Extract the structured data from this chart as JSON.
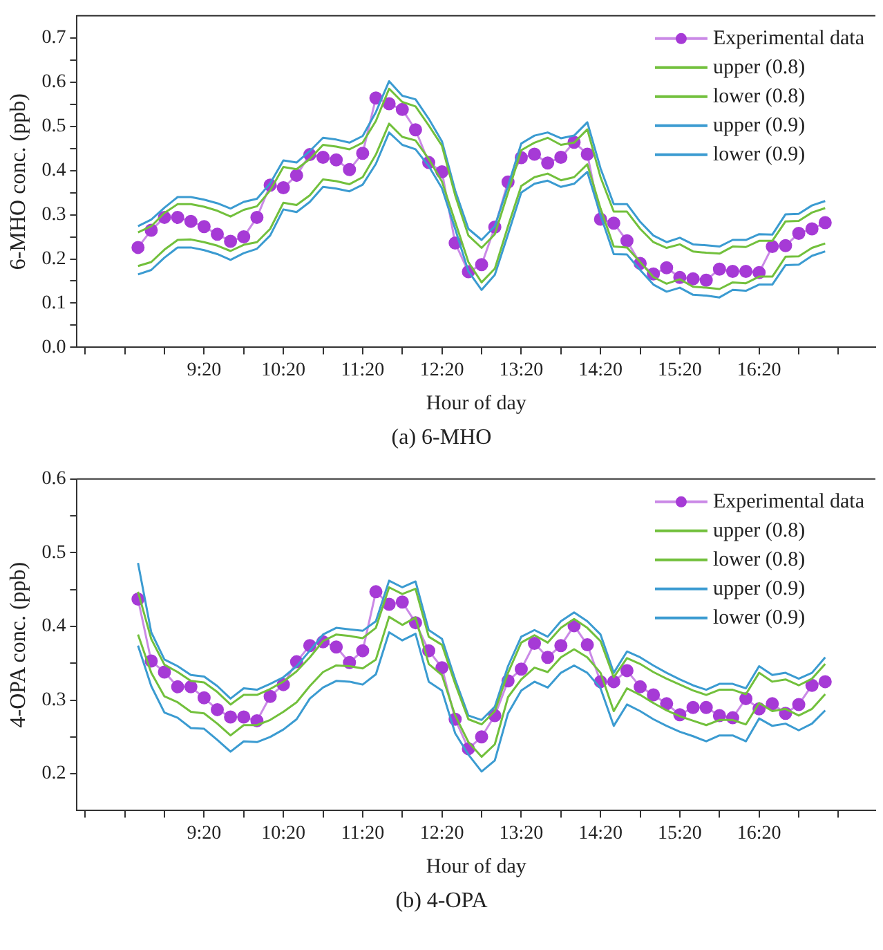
{
  "chart_data": [
    {
      "type": "line",
      "xlabel": "Hour of day",
      "ylabel": "6-MHO conc. (ppb)",
      "annotations": [
        "(a) 6-MHO"
      ],
      "legend": "top right",
      "grid": false,
      "x": [
        8.5,
        8.6667,
        8.8333,
        9,
        9.1667,
        9.3333,
        9.5,
        9.6667,
        9.8333,
        10,
        10.1667,
        10.3333,
        10.5,
        10.6667,
        10.8333,
        11,
        11.1667,
        11.3333,
        11.5,
        11.6667,
        11.8333,
        12,
        12.1667,
        12.3333,
        12.5,
        12.6667,
        12.8333,
        13,
        13.1667,
        13.3333,
        13.5,
        13.6667,
        13.8333,
        14,
        14.1667,
        14.3333,
        14.5,
        14.6667,
        14.8333,
        15,
        15.1667,
        15.3333,
        15.5,
        15.6667,
        15.8333,
        16,
        16.1667,
        16.3333,
        16.5,
        16.6667,
        16.8333,
        17,
        17.1667
      ],
      "xlim": [
        7.73,
        17.8
      ],
      "xticks": [
        {
          "value": 7.8333,
          "label": null
        },
        {
          "value": 8.3333,
          "label": null
        },
        {
          "value": 8.8333,
          "label": null
        },
        {
          "value": 9.3333,
          "label": "9:20"
        },
        {
          "value": 9.8333,
          "label": null
        },
        {
          "value": 10.3333,
          "label": "10:20"
        },
        {
          "value": 10.8333,
          "label": null
        },
        {
          "value": 11.3333,
          "label": "11:20"
        },
        {
          "value": 11.8333,
          "label": null
        },
        {
          "value": 12.3333,
          "label": "12:20"
        },
        {
          "value": 12.8333,
          "label": null
        },
        {
          "value": 13.3333,
          "label": "13:20"
        },
        {
          "value": 13.8333,
          "label": null
        },
        {
          "value": 14.3333,
          "label": "14:20"
        },
        {
          "value": 14.8333,
          "label": null
        },
        {
          "value": 15.3333,
          "label": "15:20"
        },
        {
          "value": 15.8333,
          "label": null
        },
        {
          "value": 16.3333,
          "label": "16:20"
        },
        {
          "value": 16.8333,
          "label": null
        },
        {
          "value": 17.3333,
          "label": null
        }
      ],
      "ylim": [
        0,
        0.75
      ],
      "yticks": [
        {
          "value": 0,
          "label": "0.0"
        },
        {
          "value": 0.05,
          "label": null
        },
        0.1,
        {
          "value": 0.15,
          "label": null
        },
        0.2,
        {
          "value": 0.25,
          "label": null
        },
        0.3,
        {
          "value": 0.35,
          "label": null
        },
        0.4,
        {
          "value": 0.45,
          "label": null
        },
        0.5,
        {
          "value": 0.55,
          "label": null
        },
        0.6,
        {
          "value": 0.65,
          "label": null
        },
        0.7
      ],
      "series": [
        {
          "name": "Experimental data",
          "color": "#a63ad6",
          "marker": "circle",
          "values": [
            0.226,
            0.265,
            0.294,
            0.294,
            0.285,
            0.273,
            0.256,
            0.24,
            0.25,
            0.294,
            0.367,
            0.361,
            0.389,
            0.436,
            0.43,
            0.424,
            0.402,
            0.439,
            0.564,
            0.551,
            0.538,
            0.492,
            0.418,
            0.397,
            0.236,
            0.171,
            0.187,
            0.272,
            0.374,
            0.429,
            0.437,
            0.417,
            0.43,
            0.464,
            0.437,
            0.29,
            0.281,
            0.241,
            0.19,
            0.166,
            0.18,
            0.158,
            0.155,
            0.152,
            0.177,
            0.172,
            0.172,
            0.169,
            0.228,
            0.23,
            0.258,
            0.268,
            0.282
          ]
        },
        {
          "name": "upper (0.8)",
          "color": "#72c03c",
          "values": [
            0.26,
            0.274,
            0.304,
            0.324,
            0.324,
            0.318,
            0.309,
            0.296,
            0.311,
            0.319,
            0.355,
            0.408,
            0.403,
            0.426,
            0.458,
            0.454,
            0.448,
            0.463,
            0.512,
            0.585,
            0.555,
            0.545,
            0.502,
            0.456,
            0.344,
            0.253,
            0.225,
            0.256,
            0.35,
            0.446,
            0.463,
            0.474,
            0.458,
            0.463,
            0.493,
            0.385,
            0.307,
            0.307,
            0.268,
            0.238,
            0.225,
            0.233,
            0.217,
            0.214,
            0.212,
            0.228,
            0.227,
            0.241,
            0.241,
            0.285,
            0.286,
            0.305,
            0.315
          ]
        },
        {
          "name": "lower (0.8)",
          "color": "#72c03c",
          "values": [
            0.184,
            0.193,
            0.221,
            0.243,
            0.244,
            0.238,
            0.23,
            0.218,
            0.232,
            0.238,
            0.268,
            0.327,
            0.322,
            0.344,
            0.38,
            0.376,
            0.369,
            0.385,
            0.436,
            0.506,
            0.476,
            0.468,
            0.426,
            0.375,
            0.284,
            0.193,
            0.147,
            0.178,
            0.274,
            0.365,
            0.385,
            0.393,
            0.378,
            0.385,
            0.414,
            0.314,
            0.228,
            0.226,
            0.193,
            0.159,
            0.144,
            0.154,
            0.137,
            0.135,
            0.132,
            0.147,
            0.145,
            0.16,
            0.16,
            0.205,
            0.206,
            0.225,
            0.235
          ]
        },
        {
          "name": "upper (0.9)",
          "color": "#3b9bd1",
          "values": [
            0.274,
            0.289,
            0.316,
            0.34,
            0.34,
            0.334,
            0.326,
            0.314,
            0.329,
            0.336,
            0.371,
            0.423,
            0.418,
            0.444,
            0.474,
            0.47,
            0.463,
            0.478,
            0.532,
            0.602,
            0.569,
            0.561,
            0.517,
            0.466,
            0.355,
            0.268,
            0.243,
            0.274,
            0.365,
            0.461,
            0.479,
            0.486,
            0.473,
            0.479,
            0.509,
            0.405,
            0.324,
            0.324,
            0.284,
            0.253,
            0.238,
            0.248,
            0.233,
            0.231,
            0.228,
            0.243,
            0.243,
            0.256,
            0.255,
            0.301,
            0.302,
            0.321,
            0.331
          ]
        },
        {
          "name": "lower (0.9)",
          "color": "#3b9bd1",
          "values": [
            0.165,
            0.175,
            0.203,
            0.226,
            0.226,
            0.22,
            0.211,
            0.198,
            0.213,
            0.223,
            0.253,
            0.312,
            0.306,
            0.329,
            0.363,
            0.359,
            0.353,
            0.368,
            0.415,
            0.486,
            0.458,
            0.448,
            0.41,
            0.36,
            0.268,
            0.172,
            0.13,
            0.164,
            0.256,
            0.35,
            0.37,
            0.377,
            0.363,
            0.37,
            0.397,
            0.299,
            0.211,
            0.21,
            0.175,
            0.142,
            0.126,
            0.135,
            0.119,
            0.117,
            0.113,
            0.13,
            0.128,
            0.142,
            0.142,
            0.186,
            0.187,
            0.207,
            0.217
          ]
        }
      ]
    },
    {
      "type": "line",
      "xlabel": "Hour of day",
      "ylabel": "4-OPA conc. (ppb)",
      "annotations": [
        "(b) 4-OPA"
      ],
      "legend": "top right",
      "grid": false,
      "x": [
        8.5,
        8.6667,
        8.8333,
        9,
        9.1667,
        9.3333,
        9.5,
        9.6667,
        9.8333,
        10,
        10.1667,
        10.3333,
        10.5,
        10.6667,
        10.8333,
        11,
        11.1667,
        11.3333,
        11.5,
        11.6667,
        11.8333,
        12,
        12.1667,
        12.3333,
        12.5,
        12.6667,
        12.8333,
        13,
        13.1667,
        13.3333,
        13.5,
        13.6667,
        13.8333,
        14,
        14.1667,
        14.3333,
        14.5,
        14.6667,
        14.8333,
        15,
        15.1667,
        15.3333,
        15.5,
        15.6667,
        15.8333,
        16,
        16.1667,
        16.3333,
        16.5,
        16.6667,
        16.8333,
        17,
        17.1667
      ],
      "xlim": [
        7.73,
        17.8
      ],
      "xticks": [
        {
          "value": 7.8333,
          "label": null
        },
        {
          "value": 8.3333,
          "label": null
        },
        {
          "value": 8.8333,
          "label": null
        },
        {
          "value": 9.3333,
          "label": "9:20"
        },
        {
          "value": 9.8333,
          "label": null
        },
        {
          "value": 10.3333,
          "label": "10:20"
        },
        {
          "value": 10.8333,
          "label": null
        },
        {
          "value": 11.3333,
          "label": "11:20"
        },
        {
          "value": 11.8333,
          "label": null
        },
        {
          "value": 12.3333,
          "label": "12:20"
        },
        {
          "value": 12.8333,
          "label": null
        },
        {
          "value": 13.3333,
          "label": "13:20"
        },
        {
          "value": 13.8333,
          "label": null
        },
        {
          "value": 14.3333,
          "label": "14:20"
        },
        {
          "value": 14.8333,
          "label": null
        },
        {
          "value": 15.3333,
          "label": "15:20"
        },
        {
          "value": 15.8333,
          "label": null
        },
        {
          "value": 16.3333,
          "label": "16:20"
        },
        {
          "value": 16.8333,
          "label": null
        },
        {
          "value": 17.3333,
          "label": null
        }
      ],
      "ylim": [
        0.15,
        0.6
      ],
      "yticks": [
        0.2,
        {
          "value": 0.25,
          "label": null
        },
        0.3,
        {
          "value": 0.35,
          "label": null
        },
        0.4,
        {
          "value": 0.45,
          "label": null
        },
        0.5,
        {
          "value": 0.55,
          "label": null
        },
        0.6
      ],
      "series": [
        {
          "name": "Experimental data",
          "color": "#a63ad6",
          "marker": "circle",
          "values": [
            0.437,
            0.353,
            0.338,
            0.318,
            0.318,
            0.303,
            0.287,
            0.277,
            0.277,
            0.272,
            0.305,
            0.321,
            0.352,
            0.374,
            0.379,
            0.372,
            0.351,
            0.367,
            0.447,
            0.43,
            0.433,
            0.405,
            0.367,
            0.344,
            0.274,
            0.234,
            0.25,
            0.279,
            0.326,
            0.342,
            0.377,
            0.358,
            0.374,
            0.401,
            0.375,
            0.325,
            0.325,
            0.34,
            0.318,
            0.307,
            0.295,
            0.28,
            0.29,
            0.29,
            0.279,
            0.276,
            0.302,
            0.288,
            0.295,
            0.282,
            0.294,
            0.32,
            0.325
          ]
        },
        {
          "name": "upper (0.8)",
          "color": "#72c03c",
          "values": [
            0.447,
            0.383,
            0.348,
            0.338,
            0.326,
            0.324,
            0.311,
            0.294,
            0.307,
            0.307,
            0.315,
            0.325,
            0.339,
            0.358,
            0.38,
            0.389,
            0.387,
            0.384,
            0.398,
            0.453,
            0.444,
            0.451,
            0.386,
            0.375,
            0.322,
            0.274,
            0.267,
            0.285,
            0.337,
            0.378,
            0.388,
            0.378,
            0.398,
            0.41,
            0.398,
            0.38,
            0.331,
            0.357,
            0.349,
            0.338,
            0.329,
            0.321,
            0.313,
            0.307,
            0.314,
            0.314,
            0.308,
            0.337,
            0.325,
            0.328,
            0.32,
            0.329,
            0.349
          ]
        },
        {
          "name": "lower (0.8)",
          "color": "#72c03c",
          "values": [
            0.389,
            0.337,
            0.305,
            0.297,
            0.284,
            0.282,
            0.268,
            0.252,
            0.266,
            0.266,
            0.273,
            0.284,
            0.297,
            0.319,
            0.338,
            0.347,
            0.346,
            0.343,
            0.355,
            0.413,
            0.402,
            0.412,
            0.349,
            0.334,
            0.279,
            0.243,
            0.223,
            0.24,
            0.304,
            0.328,
            0.344,
            0.338,
            0.358,
            0.369,
            0.358,
            0.337,
            0.285,
            0.316,
            0.307,
            0.296,
            0.286,
            0.278,
            0.272,
            0.266,
            0.273,
            0.273,
            0.267,
            0.296,
            0.285,
            0.288,
            0.279,
            0.288,
            0.308
          ]
        },
        {
          "name": "upper (0.9)",
          "color": "#3b9bd1",
          "values": [
            0.486,
            0.392,
            0.355,
            0.346,
            0.334,
            0.332,
            0.319,
            0.302,
            0.316,
            0.314,
            0.322,
            0.331,
            0.346,
            0.367,
            0.389,
            0.398,
            0.396,
            0.394,
            0.407,
            0.462,
            0.453,
            0.461,
            0.395,
            0.383,
            0.328,
            0.279,
            0.273,
            0.291,
            0.346,
            0.386,
            0.395,
            0.386,
            0.407,
            0.419,
            0.407,
            0.389,
            0.337,
            0.366,
            0.358,
            0.347,
            0.337,
            0.328,
            0.32,
            0.314,
            0.322,
            0.322,
            0.316,
            0.346,
            0.334,
            0.337,
            0.329,
            0.337,
            0.358
          ]
        },
        {
          "name": "lower (0.9)",
          "color": "#3b9bd1",
          "values": [
            0.374,
            0.319,
            0.283,
            0.276,
            0.262,
            0.261,
            0.246,
            0.23,
            0.244,
            0.243,
            0.25,
            0.26,
            0.274,
            0.302,
            0.317,
            0.326,
            0.325,
            0.321,
            0.335,
            0.392,
            0.381,
            0.39,
            0.325,
            0.313,
            0.255,
            0.226,
            0.203,
            0.218,
            0.282,
            0.313,
            0.325,
            0.317,
            0.337,
            0.347,
            0.337,
            0.316,
            0.265,
            0.294,
            0.285,
            0.274,
            0.265,
            0.257,
            0.251,
            0.244,
            0.252,
            0.252,
            0.244,
            0.275,
            0.265,
            0.268,
            0.259,
            0.268,
            0.286
          ]
        }
      ]
    }
  ]
}
